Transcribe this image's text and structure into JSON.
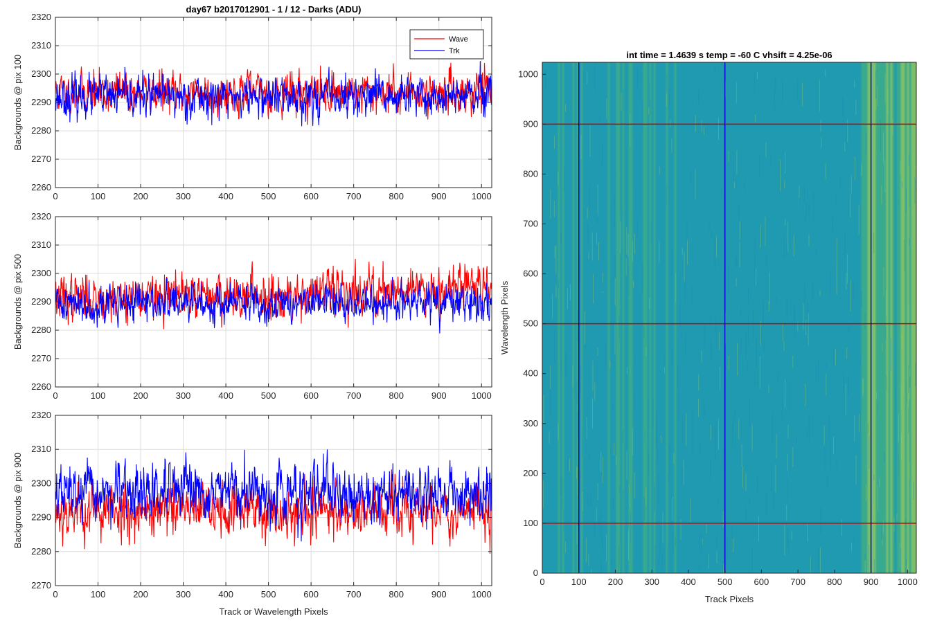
{
  "figure": {
    "title": "day67 b2017012901 - 1 / 12 - Darks (ADU)"
  },
  "chart_data": [
    {
      "type": "line",
      "panel": "pix100",
      "ylabel": "Backgrounds @ pix 100",
      "xlabel": "",
      "xlim": [
        0,
        1024
      ],
      "ylim": [
        2260,
        2320
      ],
      "xticks": [
        "0",
        "100",
        "200",
        "300",
        "400",
        "500",
        "600",
        "700",
        "800",
        "900",
        "1000"
      ],
      "yticks": [
        "2260",
        "2270",
        "2280",
        "2290",
        "2300",
        "2310",
        "2320"
      ],
      "grid": true,
      "legend": {
        "position": "top-right",
        "entries": [
          "Wave",
          "Trk"
        ]
      },
      "series": [
        {
          "name": "Wave",
          "color": "#ff0000",
          "mean": 2293.5,
          "noise": 4.5,
          "trend": 0,
          "spread": 16,
          "seed": 11
        },
        {
          "name": "Trk",
          "color": "#0000ff",
          "mean": 2292.0,
          "noise": 4.5,
          "trend": 0,
          "spread": 16,
          "seed": 23
        }
      ]
    },
    {
      "type": "line",
      "panel": "pix500",
      "ylabel": "Backgrounds @ pix 500",
      "xlabel": "",
      "xlim": [
        0,
        1024
      ],
      "ylim": [
        2260,
        2320
      ],
      "xticks": [
        "0",
        "100",
        "200",
        "300",
        "400",
        "500",
        "600",
        "700",
        "800",
        "900",
        "1000"
      ],
      "yticks": [
        "2260",
        "2270",
        "2280",
        "2290",
        "2300",
        "2310",
        "2320"
      ],
      "grid": true,
      "series": [
        {
          "name": "Wave",
          "color": "#ff0000",
          "mean": 2291.5,
          "noise": 5,
          "trend": 5,
          "spread": 18,
          "seed": 37
        },
        {
          "name": "Trk",
          "color": "#0000ff",
          "mean": 2289.5,
          "noise": 4.2,
          "trend": 0,
          "spread": 16,
          "seed": 41
        }
      ]
    },
    {
      "type": "line",
      "panel": "pix900",
      "ylabel": "Backgrounds @ pix 900",
      "xlabel": "Track or Wavelength Pixels",
      "xlim": [
        0,
        1024
      ],
      "ylim": [
        2270,
        2320
      ],
      "xticks": [
        "0",
        "100",
        "200",
        "300",
        "400",
        "500",
        "600",
        "700",
        "800",
        "900",
        "1000"
      ],
      "yticks": [
        "2270",
        "2280",
        "2290",
        "2300",
        "2310",
        "2320"
      ],
      "grid": true,
      "series": [
        {
          "name": "Wave",
          "color": "#ff0000",
          "mean": 2292.0,
          "noise": 5,
          "trend": 0,
          "spread": 20,
          "seed": 53
        },
        {
          "name": "Trk",
          "color": "#0000ff",
          "mean": 2297.0,
          "noise": 5,
          "trend": 0,
          "spread": 18,
          "seed": 67
        }
      ]
    },
    {
      "type": "heatmap",
      "panel": "image",
      "title": "int time = 1.4639 s    temp = -60 C    vhsift = 4.25e-06",
      "xlabel": "Track Pixels",
      "ylabel": "Wavelength Pixels",
      "xlim": [
        0,
        1024
      ],
      "ylim": [
        0,
        1024
      ],
      "xticks": [
        "0",
        "100",
        "200",
        "300",
        "400",
        "500",
        "600",
        "700",
        "800",
        "900",
        "1000"
      ],
      "yticks": [
        "0",
        "100",
        "200",
        "300",
        "400",
        "500",
        "600",
        "700",
        "800",
        "900",
        "1000"
      ],
      "colormap": [
        "#1f9ab0",
        "#3aaa8e",
        "#7cbf6a"
      ],
      "vertical_markers": {
        "color": "#0000cc",
        "values": [
          100,
          500,
          900
        ]
      },
      "horizontal_markers": {
        "color": "#cc0000",
        "values": [
          100,
          500,
          900
        ]
      }
    }
  ]
}
